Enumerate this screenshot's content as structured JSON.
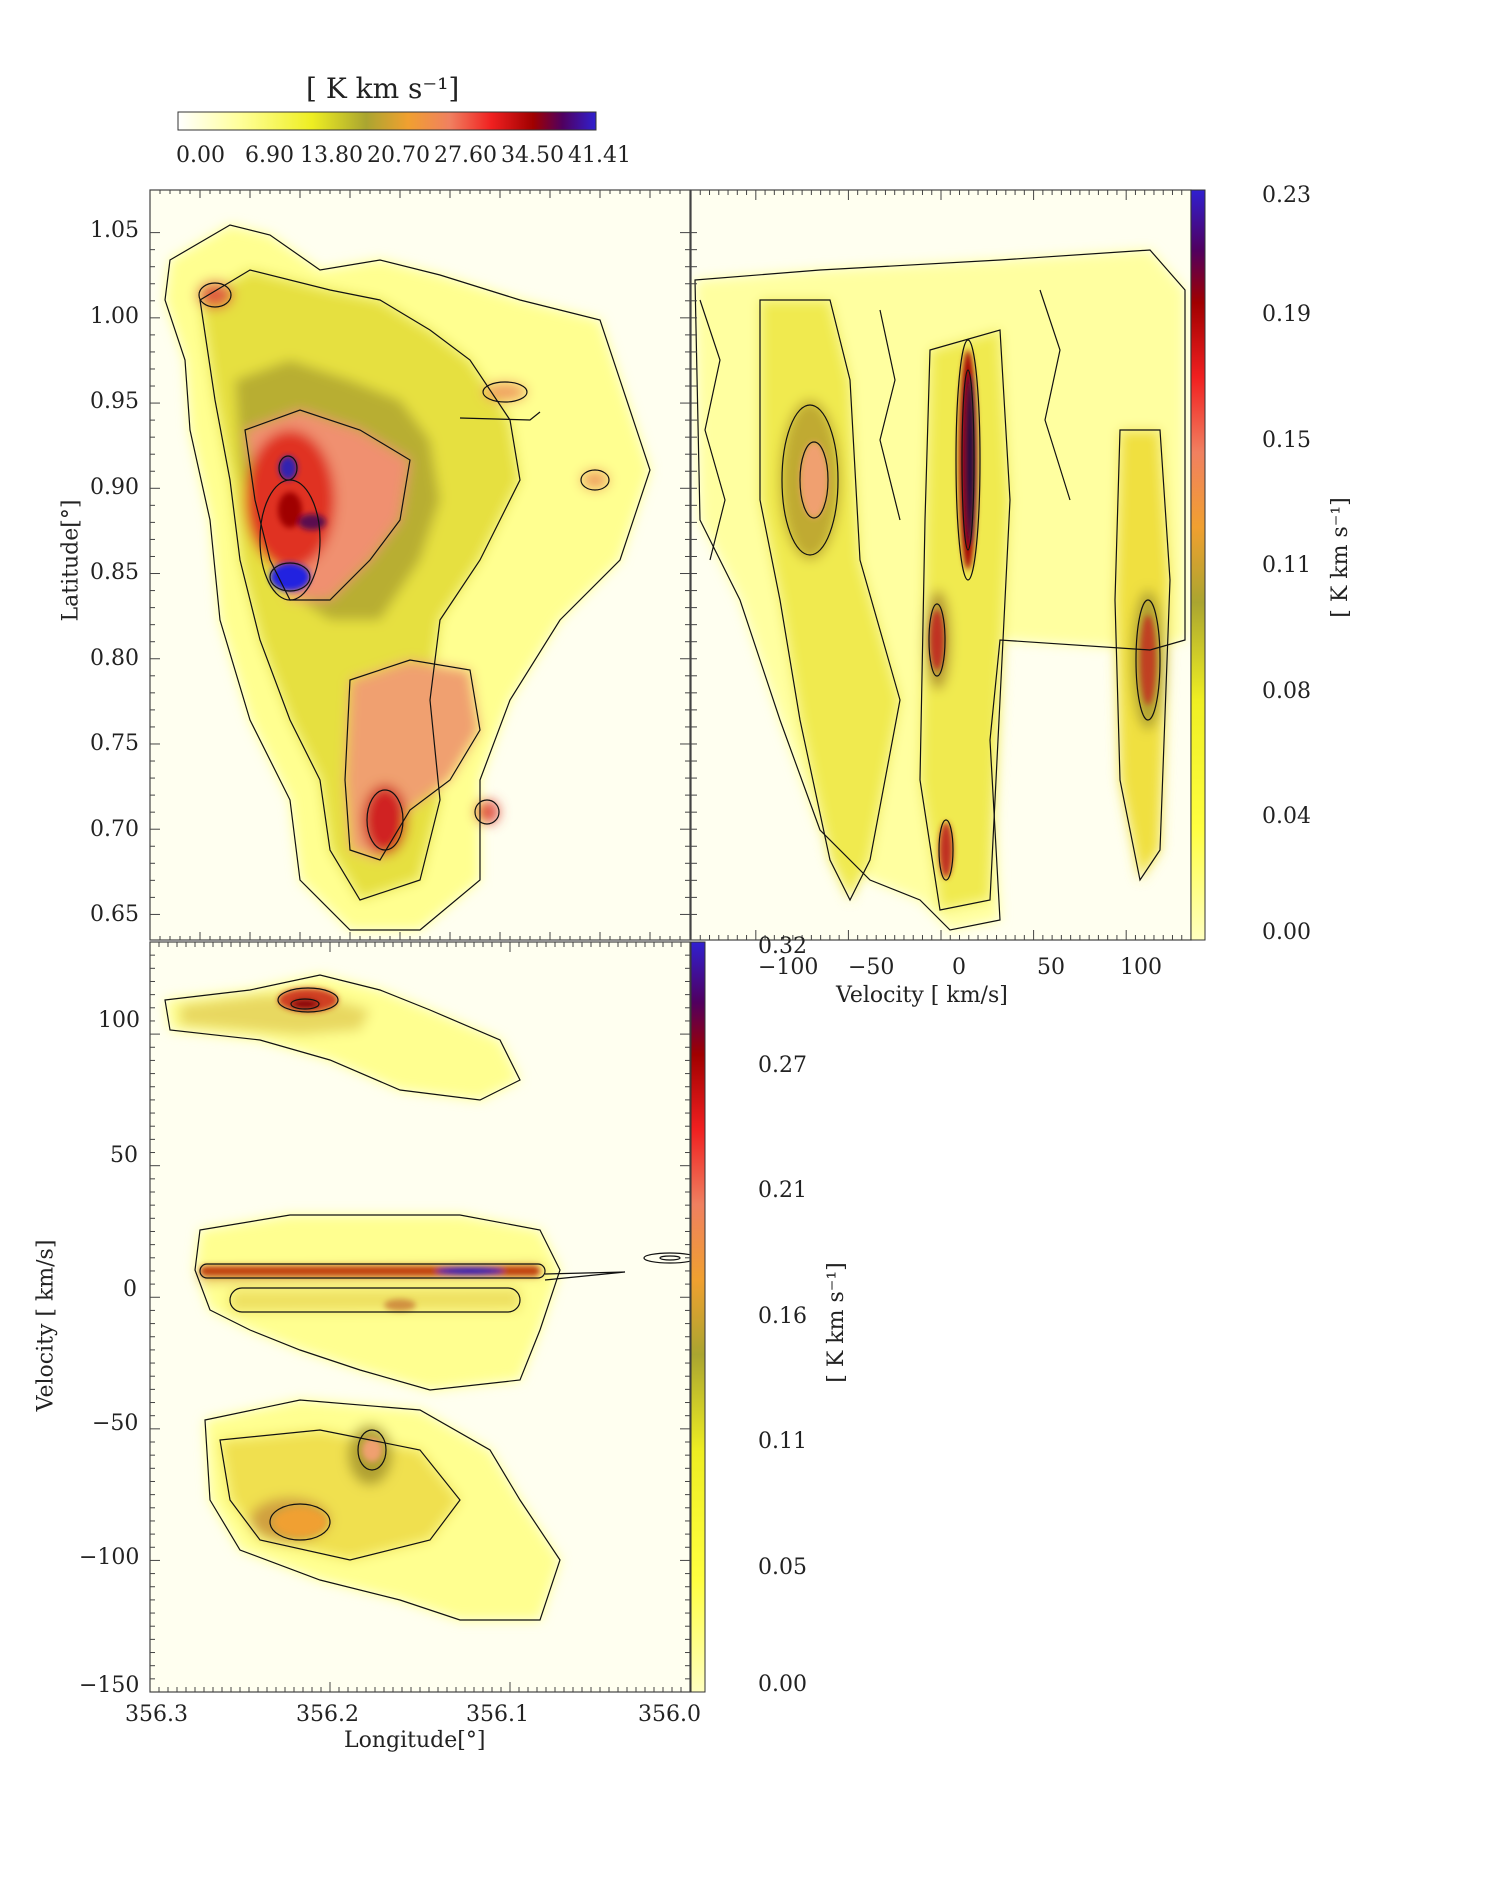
{
  "chart_data": [
    {
      "type": "heatmap",
      "panel": "longitude-latitude map",
      "colorbar": {
        "title": "[ K km s⁻¹]",
        "ticks": [
          "0.00",
          "6.90",
          "13.80",
          "20.70",
          "27.60",
          "34.50",
          "41.41"
        ],
        "range": [
          0.0,
          41.41
        ],
        "placement": "top"
      },
      "x": {
        "label": "",
        "range": [
          356.3,
          356.0
        ],
        "ticks": []
      },
      "y": {
        "label": "Latitude[°]",
        "range": [
          0.635,
          1.075
        ],
        "ticks": [
          "1.05",
          "1.00",
          "0.95",
          "0.90",
          "0.85",
          "0.80",
          "0.75",
          "0.70",
          "0.65"
        ]
      },
      "peaks": [
        {
          "lon": 356.22,
          "lat": 0.845,
          "value": 41.4
        },
        {
          "lon": 356.22,
          "lat": 0.905,
          "value": 39.0
        },
        {
          "lon": 356.21,
          "lat": 0.875,
          "value": 36.0
        },
        {
          "lon": 356.18,
          "lat": 0.72,
          "value": 30.0
        },
        {
          "lon": 356.27,
          "lat": 1.01,
          "value": 25.0
        },
        {
          "lon": 356.06,
          "lat": 0.9,
          "value": 18.0
        }
      ],
      "contours": true
    },
    {
      "type": "heatmap",
      "panel": "velocity-latitude map",
      "colorbar": {
        "title": "[ K km s⁻¹]",
        "ticks": [
          "0.23",
          "0.19",
          "0.15",
          "0.11",
          "0.08",
          "0.04",
          "0.00"
        ],
        "range": [
          0.0,
          0.23
        ],
        "placement": "right"
      },
      "x": {
        "label": "Velocity [ km/s]",
        "range": [
          -135,
          135
        ],
        "ticks": [
          "−100",
          "−50",
          "0",
          "50",
          "100"
        ]
      },
      "y": {
        "range": [
          0.635,
          1.075
        ]
      },
      "peaks": [
        {
          "v": 7,
          "lat": 0.9,
          "value": 0.23
        },
        {
          "v": -12,
          "lat": 0.82,
          "value": 0.16
        },
        {
          "v": -80,
          "lat": 0.88,
          "value": 0.13
        },
        {
          "v": 105,
          "lat": 0.8,
          "value": 0.15
        },
        {
          "v": -5,
          "lat": 0.69,
          "value": 0.14
        }
      ],
      "contours": true
    },
    {
      "type": "heatmap",
      "panel": "longitude-velocity map",
      "colorbar": {
        "title": "[ K km s⁻¹]",
        "ticks": [
          "0.32",
          "0.27",
          "0.21",
          "0.16",
          "0.11",
          "0.05",
          "0.00"
        ],
        "range": [
          0.0,
          0.32
        ],
        "placement": "right"
      },
      "x": {
        "label": "Longitude[°]",
        "range": [
          356.3,
          356.0
        ],
        "ticks": [
          "356.3",
          "356.2",
          "356.1",
          "356.0"
        ]
      },
      "y": {
        "label": "Velocity [ km/s]",
        "range": [
          -150,
          135
        ],
        "ticks": [
          "100",
          "50",
          "0",
          "−50",
          "−100",
          "−150"
        ]
      },
      "peaks": [
        {
          "lon": 356.12,
          "v": 8,
          "value": 0.32
        },
        {
          "lon": 356.2,
          "v": 110,
          "value": 0.24
        },
        {
          "lon": 356.21,
          "v": -85,
          "value": 0.15
        },
        {
          "lon": 356.18,
          "v": -62,
          "value": 0.14
        }
      ],
      "contours": true
    }
  ]
}
